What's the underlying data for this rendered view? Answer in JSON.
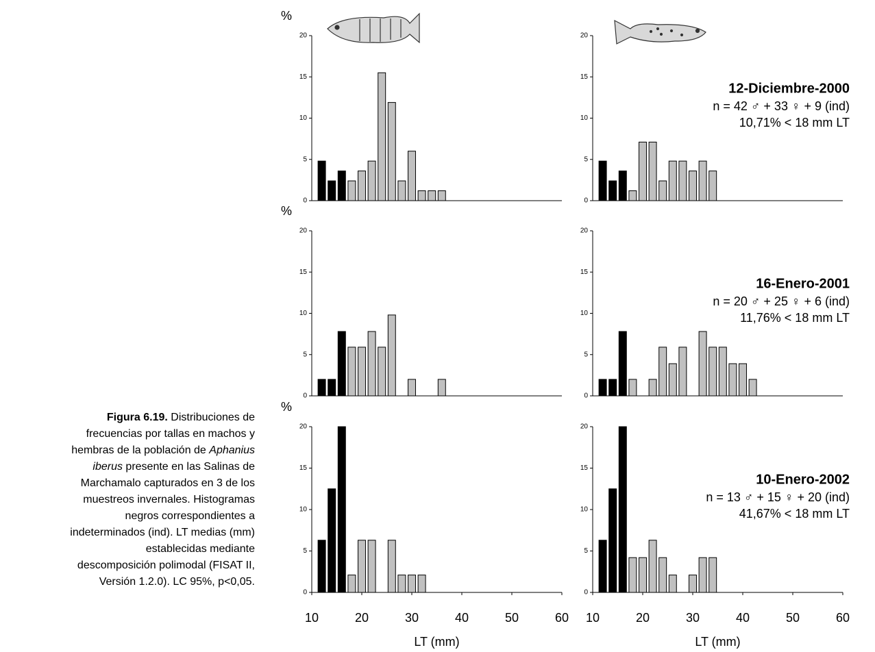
{
  "caption": {
    "lines": [
      [
        "Figura 6.19.",
        " Distribuciones de"
      ],
      [
        "frecuencias por tallas en machos y"
      ],
      [
        "hembras de la población de ",
        "Aphanius"
      ],
      [
        "iberus",
        " presente en las Salinas de"
      ],
      [
        "Marchamalo capturados en 3 de los"
      ],
      [
        "muestreos invernales. Histogramas"
      ],
      [
        "negros correspondientes a"
      ],
      [
        "indeterminados (ind). LT medias (mm)"
      ],
      [
        "establecidas mediante"
      ],
      [
        "descomposición polimodal (FISAT II,"
      ],
      [
        "Versión 1.2.0). LC 95%, p<0,05."
      ]
    ]
  },
  "chart_data": [
    {
      "type": "bar",
      "y_label": "%",
      "x": [
        12,
        14,
        16,
        18,
        20,
        22,
        24,
        26,
        28,
        30,
        32,
        34,
        36
      ],
      "values": [
        4.8,
        2.4,
        3.6,
        2.4,
        3.6,
        4.8,
        15.5,
        11.9,
        2.4,
        6.0,
        1.2,
        1.2,
        1.2
      ],
      "colors": [
        "#000000",
        "#000000",
        "#000000",
        "#c0c0c0",
        "#c0c0c0",
        "#c0c0c0",
        "#c0c0c0",
        "#c0c0c0",
        "#c0c0c0",
        "#c0c0c0",
        "#c0c0c0",
        "#c0c0c0",
        "#c0c0c0"
      ],
      "xlim": [
        10,
        60
      ],
      "ylim": [
        0,
        20
      ],
      "yticks": [
        0,
        5,
        10,
        15,
        20
      ]
    },
    {
      "type": "bar",
      "x": [
        12,
        14,
        16,
        18,
        20,
        22,
        24,
        26,
        28,
        30,
        32,
        34
      ],
      "values": [
        4.8,
        2.4,
        3.6,
        1.2,
        7.1,
        7.1,
        2.4,
        4.8,
        4.8,
        3.6,
        4.8,
        3.6
      ],
      "colors": [
        "#000000",
        "#000000",
        "#000000",
        "#c0c0c0",
        "#c0c0c0",
        "#c0c0c0",
        "#c0c0c0",
        "#c0c0c0",
        "#c0c0c0",
        "#c0c0c0",
        "#c0c0c0",
        "#c0c0c0"
      ],
      "xlim": [
        10,
        60
      ],
      "ylim": [
        0,
        20
      ],
      "yticks": [
        0,
        5,
        10,
        15,
        20
      ],
      "annotations": [
        "12-Diciembre-2000",
        "n = 42 ♂ + 33 ♀ + 9 (ind)",
        "10,71% < 18 mm LT"
      ]
    },
    {
      "type": "bar",
      "y_label": "%",
      "x": [
        12,
        14,
        16,
        18,
        20,
        22,
        24,
        26,
        30,
        36
      ],
      "values": [
        2,
        2,
        7.8,
        5.9,
        5.9,
        7.8,
        5.9,
        9.8,
        2,
        2
      ],
      "colors": [
        "#000000",
        "#000000",
        "#000000",
        "#c0c0c0",
        "#c0c0c0",
        "#c0c0c0",
        "#c0c0c0",
        "#c0c0c0",
        "#c0c0c0",
        "#c0c0c0"
      ],
      "xlim": [
        10,
        60
      ],
      "ylim": [
        0,
        20
      ],
      "yticks": [
        0,
        5,
        10,
        15,
        20
      ]
    },
    {
      "type": "bar",
      "x": [
        12,
        14,
        16,
        18,
        22,
        24,
        26,
        28,
        32,
        34,
        36,
        38,
        40,
        42
      ],
      "values": [
        2,
        2,
        7.8,
        2,
        2,
        5.9,
        3.9,
        5.9,
        7.8,
        5.9,
        5.9,
        3.9,
        3.9,
        2
      ],
      "colors": [
        "#000000",
        "#000000",
        "#000000",
        "#c0c0c0",
        "#c0c0c0",
        "#c0c0c0",
        "#c0c0c0",
        "#c0c0c0",
        "#c0c0c0",
        "#c0c0c0",
        "#c0c0c0",
        "#c0c0c0",
        "#c0c0c0",
        "#c0c0c0"
      ],
      "xlim": [
        10,
        60
      ],
      "ylim": [
        0,
        20
      ],
      "yticks": [
        0,
        5,
        10,
        15,
        20
      ],
      "annotations": [
        "16-Enero-2001",
        "n = 20 ♂ + 25 ♀ + 6 (ind)",
        "11,76% < 18 mm LT"
      ]
    },
    {
      "type": "bar",
      "y_label": "%",
      "x": [
        12,
        14,
        16,
        18,
        20,
        22,
        26,
        28,
        30,
        32
      ],
      "values": [
        6.3,
        12.5,
        20,
        2.1,
        6.3,
        6.3,
        6.3,
        2.1,
        2.1,
        2.1
      ],
      "colors": [
        "#000000",
        "#000000",
        "#000000",
        "#c0c0c0",
        "#c0c0c0",
        "#c0c0c0",
        "#c0c0c0",
        "#c0c0c0",
        "#c0c0c0",
        "#c0c0c0"
      ],
      "xlim": [
        10,
        60
      ],
      "ylim": [
        0,
        20
      ],
      "yticks": [
        0,
        5,
        10,
        15,
        20
      ],
      "xticks": [
        10,
        20,
        30,
        40,
        50,
        60
      ],
      "x_label": "LT (mm)"
    },
    {
      "type": "bar",
      "x": [
        12,
        14,
        16,
        18,
        20,
        22,
        24,
        26,
        30,
        32,
        34
      ],
      "values": [
        6.3,
        12.5,
        20,
        4.2,
        4.2,
        6.3,
        4.2,
        2.1,
        2.1,
        4.2,
        4.2
      ],
      "colors": [
        "#000000",
        "#000000",
        "#000000",
        "#c0c0c0",
        "#c0c0c0",
        "#c0c0c0",
        "#c0c0c0",
        "#c0c0c0",
        "#c0c0c0",
        "#c0c0c0",
        "#c0c0c0"
      ],
      "xlim": [
        10,
        60
      ],
      "ylim": [
        0,
        20
      ],
      "yticks": [
        0,
        5,
        10,
        15,
        20
      ],
      "xticks": [
        10,
        20,
        30,
        40,
        50,
        60
      ],
      "x_label": "LT (mm)",
      "annotations": [
        "10-Enero-2002",
        "n = 13 ♂ + 15 ♀ + 20 (ind)",
        "41,67% < 18 mm LT"
      ]
    }
  ]
}
